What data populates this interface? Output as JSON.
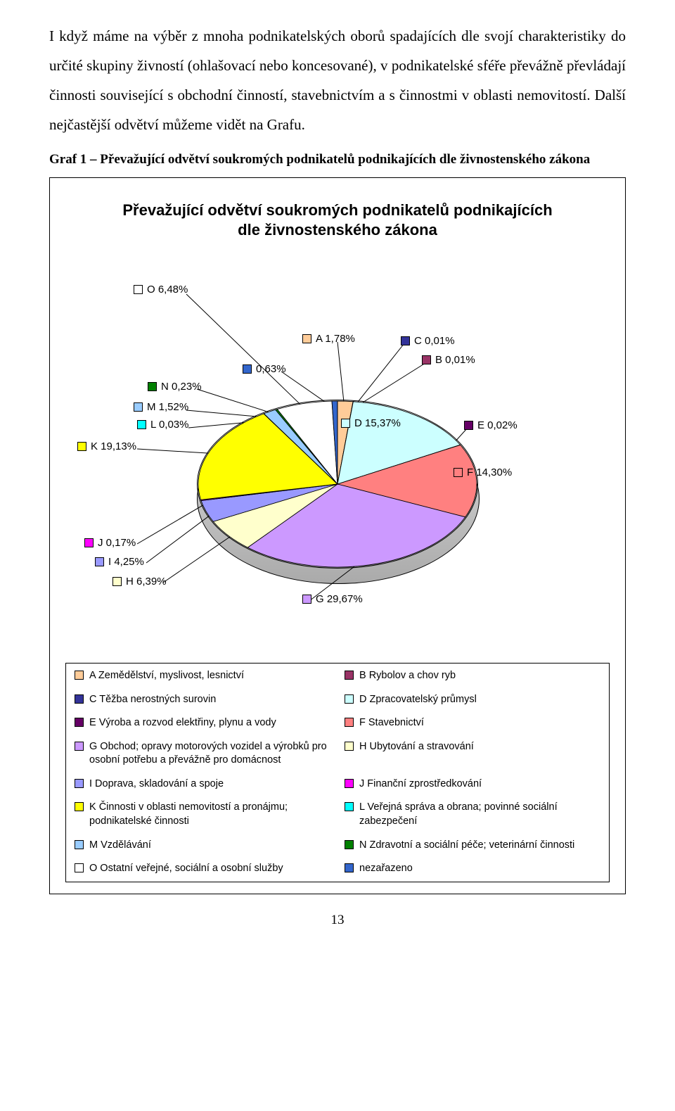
{
  "paragraph": "I když máme na výběr z mnoha podnikatelských oborů spadajících dle svojí charakteristiky do určité skupiny živností (ohlašovací nebo koncesované), v podnikatelské sféře převážně převládají činnosti související s obchodní činností, stavebnictvím a s činnostmi v oblasti nemovitostí. Další nejčastější odvětví můžeme vidět na Grafu.",
  "caption": "Graf 1 – Převažující odvětví soukromých podnikatelů podnikajících dle živnostenského zákona",
  "chart": {
    "title_line1": "Převažující odvětví soukromých podnikatelů podnikajících",
    "title_line2": "dle živnostenského zákona",
    "slices": [
      {
        "code": "A",
        "pct": 1.78,
        "color": "#ffcc99",
        "label": "A Zemědělství, myslivost, lesnictví"
      },
      {
        "code": "B",
        "pct": 0.01,
        "color": "#993366",
        "label": "B Rybolov a chov ryb"
      },
      {
        "code": "C",
        "pct": 0.01,
        "color": "#333399",
        "label": "C Těžba nerostných surovin"
      },
      {
        "code": "D",
        "pct": 15.37,
        "color": "#ccffff",
        "label": "D Zpracovatelský průmysl"
      },
      {
        "code": "E",
        "pct": 0.02,
        "color": "#660066",
        "label": "E Výroba a rozvod elektřiny, plynu a vody"
      },
      {
        "code": "F",
        "pct": 14.3,
        "color": "#ff8080",
        "label": "F Stavebnictví"
      },
      {
        "code": "G",
        "pct": 29.67,
        "color": "#cc99ff",
        "label": "G Obchod; opravy motorových vozidel a výrobků pro osobní potřebu a převážně pro domácnost"
      },
      {
        "code": "H",
        "pct": 6.39,
        "color": "#ffffcc",
        "label": "H Ubytování a stravování"
      },
      {
        "code": "I",
        "pct": 4.25,
        "color": "#9999ff",
        "label": "I Doprava, skladování a spoje"
      },
      {
        "code": "J",
        "pct": 0.17,
        "color": "#ff00ff",
        "label": "J Finanční zprostředkování"
      },
      {
        "code": "K",
        "pct": 19.13,
        "color": "#ffff00",
        "label": "K Činnosti v oblasti nemovitostí a pronájmu; podnikatelské činnosti"
      },
      {
        "code": "L",
        "pct": 0.03,
        "color": "#00ffff",
        "label": "L Veřejná správa a obrana; povinné sociální zabezpečení"
      },
      {
        "code": "M",
        "pct": 1.52,
        "color": "#99ccff",
        "label": "M Vzdělávání"
      },
      {
        "code": "N",
        "pct": 0.23,
        "color": "#008000",
        "label": "N Zdravotní a sociální péče; veterinární činnosti"
      },
      {
        "code": "O",
        "pct": 6.48,
        "color": "#ffffff",
        "label": "O Ostatní veřejné, sociální a osobní služby"
      },
      {
        "code": "X",
        "pct": 0.63,
        "color": "#3366cc",
        "label": "nezařazeno"
      }
    ],
    "callouts": {
      "O": "O 6,48%",
      "A": "A 1,78%",
      "C": "C 0,01%",
      "B": "B 0,01%",
      "X": "0,63%",
      "N": "N 0,23%",
      "M": "M 1,52%",
      "L": "L 0,03%",
      "D": "D 15,37%",
      "E": "E 0,02%",
      "K": "K 19,13%",
      "F": "F 14,30%",
      "J": "J 0,17%",
      "I": "I 4,25%",
      "H": "H 6,39%",
      "G": "G 29,67%"
    },
    "legend_order": [
      "A",
      "B",
      "C",
      "D",
      "E",
      "F",
      "G",
      "H",
      "I",
      "J",
      "K",
      "L",
      "M",
      "N",
      "O",
      "X"
    ]
  },
  "page_number": "13"
}
